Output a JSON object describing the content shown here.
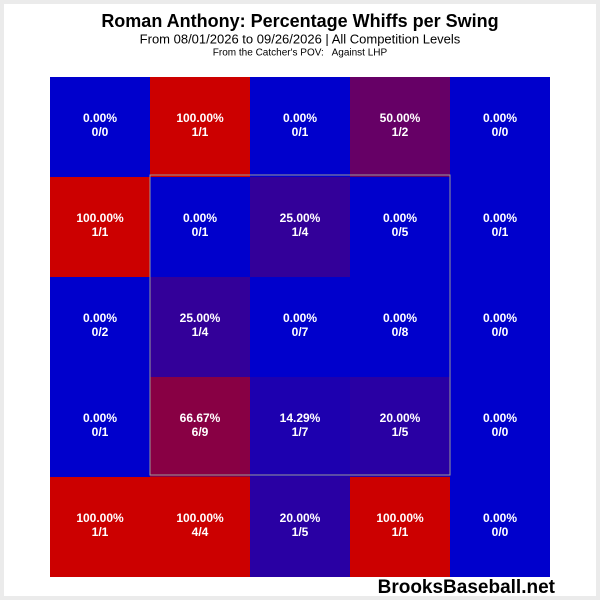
{
  "chart_data": {
    "type": "heatmap",
    "title": "Roman Anthony: Percentage Whiffs per Swing",
    "subtitle": "From 08/01/2026 to 09/26/2026 | All Competition Levels",
    "note": "From the Catcher's POV:   Against LHP",
    "watermark": "BrooksBaseball.net",
    "zlim": [
      0,
      100
    ],
    "color_low": "#0000cc",
    "color_high": "#cc0000",
    "values": [
      [
        0,
        100,
        0,
        50,
        0
      ],
      [
        100,
        0,
        25,
        0,
        0
      ],
      [
        0,
        25,
        0,
        0,
        0
      ],
      [
        0,
        66.67,
        14.29,
        20,
        0
      ],
      [
        100,
        100,
        20,
        100,
        0
      ]
    ],
    "value_labels": [
      [
        "0.00%",
        "100.00%",
        "0.00%",
        "50.00%",
        "0.00%"
      ],
      [
        "100.00%",
        "0.00%",
        "25.00%",
        "0.00%",
        "0.00%"
      ],
      [
        "0.00%",
        "25.00%",
        "0.00%",
        "0.00%",
        "0.00%"
      ],
      [
        "0.00%",
        "66.67%",
        "14.29%",
        "20.00%",
        "0.00%"
      ],
      [
        "100.00%",
        "100.00%",
        "20.00%",
        "100.00%",
        "0.00%"
      ]
    ],
    "counts": [
      [
        "0/0",
        "1/1",
        "0/1",
        "1/2",
        "0/0"
      ],
      [
        "1/1",
        "0/1",
        "1/4",
        "0/5",
        "0/1"
      ],
      [
        "0/2",
        "1/4",
        "0/7",
        "0/8",
        "0/0"
      ],
      [
        "0/1",
        "6/9",
        "1/7",
        "1/5",
        "0/0"
      ],
      [
        "1/1",
        "4/4",
        "1/5",
        "1/1",
        "0/0"
      ]
    ]
  }
}
